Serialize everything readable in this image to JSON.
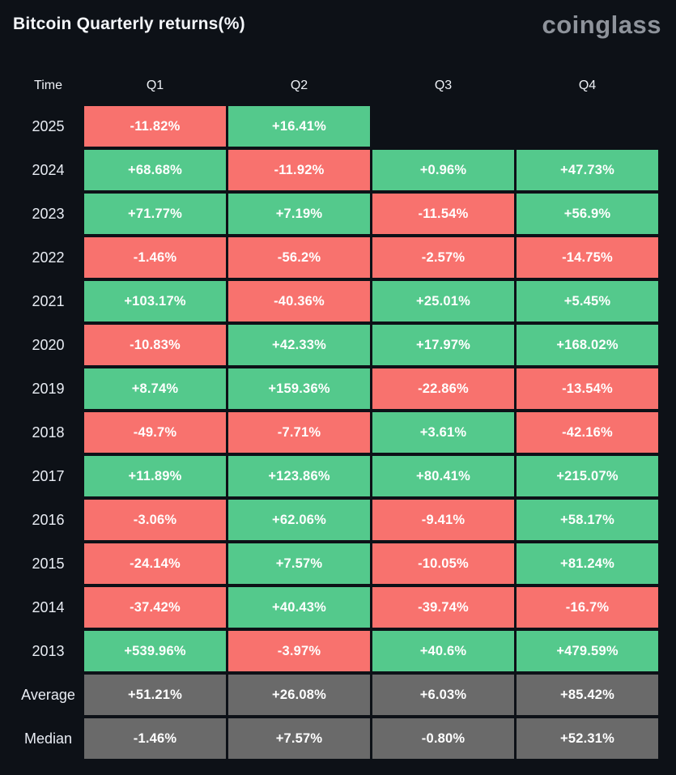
{
  "header": {
    "title": "Bitcoin Quarterly returns(%)",
    "logo": "coinglass"
  },
  "colors": {
    "background": "#0d1117",
    "positive": "#54c98c",
    "negative": "#f8726e",
    "summary": "#6a6a6a",
    "text": "#ffffff",
    "label_text": "#e9edf4",
    "logo_text": "#8e939b"
  },
  "table": {
    "columns": [
      "Time",
      "Q1",
      "Q2",
      "Q3",
      "Q4"
    ],
    "rows": [
      {
        "label": "2025",
        "type": "year",
        "values": [
          "-11.82%",
          "+16.41%",
          null,
          null
        ]
      },
      {
        "label": "2024",
        "type": "year",
        "values": [
          "+68.68%",
          "-11.92%",
          "+0.96%",
          "+47.73%"
        ]
      },
      {
        "label": "2023",
        "type": "year",
        "values": [
          "+71.77%",
          "+7.19%",
          "-11.54%",
          "+56.9%"
        ]
      },
      {
        "label": "2022",
        "type": "year",
        "values": [
          "-1.46%",
          "-56.2%",
          "-2.57%",
          "-14.75%"
        ]
      },
      {
        "label": "2021",
        "type": "year",
        "values": [
          "+103.17%",
          "-40.36%",
          "+25.01%",
          "+5.45%"
        ]
      },
      {
        "label": "2020",
        "type": "year",
        "values": [
          "-10.83%",
          "+42.33%",
          "+17.97%",
          "+168.02%"
        ]
      },
      {
        "label": "2019",
        "type": "year",
        "values": [
          "+8.74%",
          "+159.36%",
          "-22.86%",
          "-13.54%"
        ]
      },
      {
        "label": "2018",
        "type": "year",
        "values": [
          "-49.7%",
          "-7.71%",
          "+3.61%",
          "-42.16%"
        ]
      },
      {
        "label": "2017",
        "type": "year",
        "values": [
          "+11.89%",
          "+123.86%",
          "+80.41%",
          "+215.07%"
        ]
      },
      {
        "label": "2016",
        "type": "year",
        "values": [
          "-3.06%",
          "+62.06%",
          "-9.41%",
          "+58.17%"
        ]
      },
      {
        "label": "2015",
        "type": "year",
        "values": [
          "-24.14%",
          "+7.57%",
          "-10.05%",
          "+81.24%"
        ]
      },
      {
        "label": "2014",
        "type": "year",
        "values": [
          "-37.42%",
          "+40.43%",
          "-39.74%",
          "-16.7%"
        ]
      },
      {
        "label": "2013",
        "type": "year",
        "values": [
          "+539.96%",
          "-3.97%",
          "+40.6%",
          "+479.59%"
        ]
      },
      {
        "label": "Average",
        "type": "summary",
        "values": [
          "+51.21%",
          "+26.08%",
          "+6.03%",
          "+85.42%"
        ]
      },
      {
        "label": "Median",
        "type": "summary",
        "values": [
          "-1.46%",
          "+7.57%",
          "-0.80%",
          "+52.31%"
        ]
      }
    ]
  },
  "chart_data": {
    "type": "heatmap",
    "title": "Bitcoin Quarterly returns(%)",
    "columns": [
      "Q1",
      "Q2",
      "Q3",
      "Q4"
    ],
    "rows": [
      "2025",
      "2024",
      "2023",
      "2022",
      "2021",
      "2020",
      "2019",
      "2018",
      "2017",
      "2016",
      "2015",
      "2014",
      "2013",
      "Average",
      "Median"
    ],
    "values": [
      [
        -11.82,
        16.41,
        null,
        null
      ],
      [
        68.68,
        -11.92,
        0.96,
        47.73
      ],
      [
        71.77,
        7.19,
        -11.54,
        56.9
      ],
      [
        -1.46,
        -56.2,
        -2.57,
        -14.75
      ],
      [
        103.17,
        -40.36,
        25.01,
        5.45
      ],
      [
        -10.83,
        42.33,
        17.97,
        168.02
      ],
      [
        8.74,
        159.36,
        -22.86,
        -13.54
      ],
      [
        -49.7,
        -7.71,
        3.61,
        -42.16
      ],
      [
        11.89,
        123.86,
        80.41,
        215.07
      ],
      [
        -3.06,
        62.06,
        -9.41,
        58.17
      ],
      [
        -24.14,
        7.57,
        -10.05,
        81.24
      ],
      [
        -37.42,
        40.43,
        -39.74,
        -16.7
      ],
      [
        539.96,
        -3.97,
        40.6,
        479.59
      ],
      [
        51.21,
        26.08,
        6.03,
        85.42
      ],
      [
        -1.46,
        7.57,
        -0.8,
        52.31
      ]
    ],
    "unit": "%",
    "color_rule": "green = positive return, red = negative return, gray = Average/Median summary rows",
    "legend_position": "none",
    "grid": false
  }
}
